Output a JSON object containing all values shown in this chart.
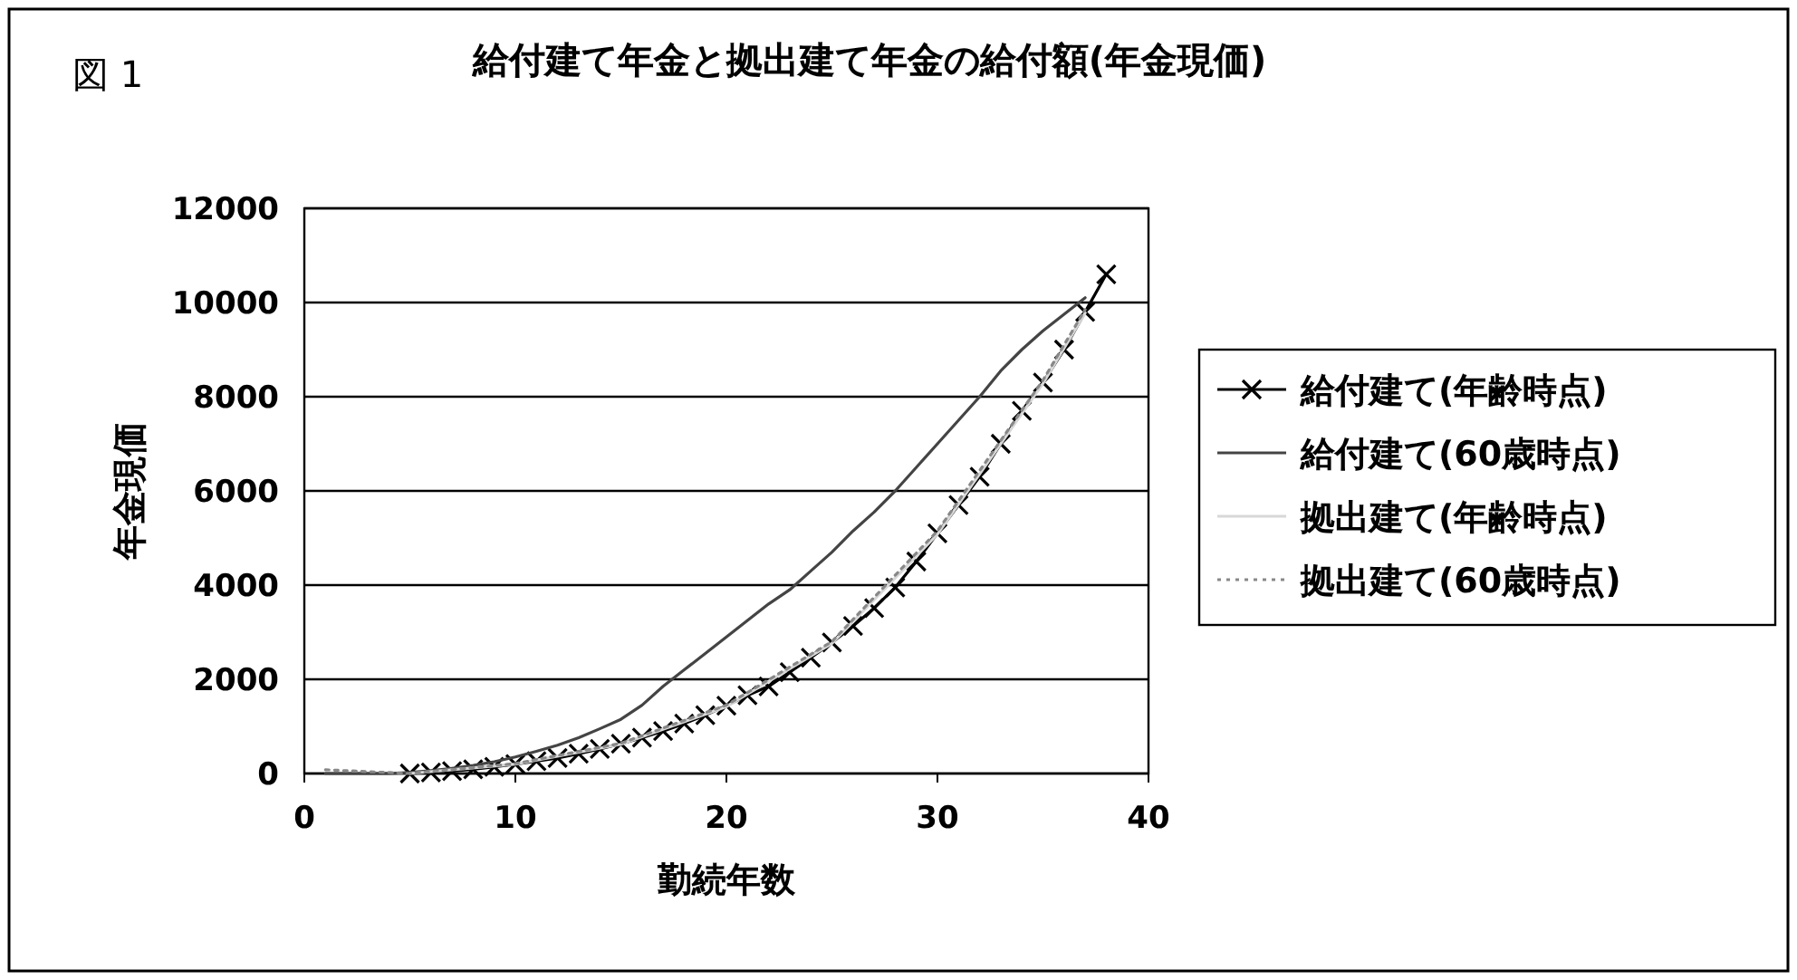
{
  "chart_data": {
    "type": "line",
    "title": "給付建て年金と拠出建て年金の給付額(年金現価)",
    "xlabel": "勤続年数",
    "ylabel": "年金現価",
    "annotations": [
      "図 1"
    ],
    "xlim": [
      0,
      40
    ],
    "xticks": [
      0,
      10,
      20,
      30,
      40
    ],
    "ylim": [
      0,
      12000
    ],
    "yticks": [
      0,
      2000,
      4000,
      6000,
      8000,
      10000,
      12000
    ],
    "grid": "y",
    "legend": "right",
    "series": [
      {
        "name": "給付建て(年齢時点)",
        "color": "#000000",
        "marker": "cross",
        "line_style": "solid",
        "x": [
          5,
          6,
          7,
          8,
          9,
          10,
          11,
          12,
          13,
          14,
          15,
          16,
          17,
          18,
          19,
          20,
          21,
          22,
          23,
          24,
          25,
          26,
          27,
          28,
          29,
          30,
          31,
          32,
          33,
          34,
          35,
          36,
          37,
          38
        ],
        "values": [
          0,
          20,
          50,
          90,
          140,
          200,
          260,
          330,
          420,
          520,
          630,
          760,
          900,
          1060,
          1240,
          1440,
          1660,
          1850,
          2150,
          2460,
          2780,
          3130,
          3510,
          3950,
          4500,
          5100,
          5700,
          6300,
          7000,
          7700,
          8300,
          9000,
          9800,
          10600
        ]
      },
      {
        "name": "給付建て(60歳時点)",
        "color": "#444444",
        "marker": "none",
        "line_style": "solid",
        "x": [
          1,
          2,
          3,
          4,
          5,
          6,
          7,
          8,
          9,
          10,
          11,
          12,
          13,
          14,
          15,
          16,
          17,
          18,
          19,
          20,
          21,
          22,
          23,
          24,
          25,
          26,
          27,
          28,
          29,
          30,
          31,
          32,
          33,
          34,
          35,
          36,
          37
        ],
        "values": [
          0,
          0,
          0,
          0,
          20,
          60,
          110,
          170,
          250,
          350,
          470,
          600,
          760,
          950,
          1150,
          1450,
          1850,
          2200,
          2550,
          2900,
          3250,
          3600,
          3900,
          4300,
          4700,
          5150,
          5550,
          6000,
          6500,
          7000,
          7500,
          8000,
          8550,
          9000,
          9400,
          9750,
          10100
        ]
      },
      {
        "name": "拠出建て(年齢時点)",
        "color": "#d8d8d8",
        "marker": "none",
        "line_style": "solid",
        "x": [
          5,
          10,
          15,
          20,
          25,
          30,
          35,
          37
        ],
        "values": [
          0,
          200,
          620,
          1420,
          2760,
          5080,
          8280,
          9780
        ]
      },
      {
        "name": "拠出建て(60歳時点)",
        "color": "#888888",
        "marker": "none",
        "line_style": "dotted",
        "x": [
          1,
          2,
          3,
          4,
          5,
          10,
          15,
          20,
          25,
          30,
          35,
          37
        ],
        "values": [
          80,
          60,
          40,
          20,
          0,
          210,
          640,
          1450,
          2800,
          5150,
          8350,
          9850
        ]
      }
    ]
  }
}
